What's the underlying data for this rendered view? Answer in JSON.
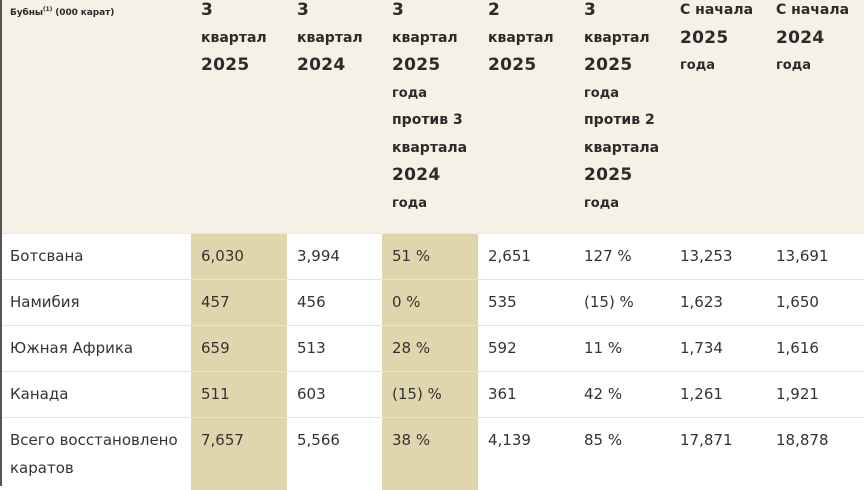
{
  "table": {
    "corner_header": {
      "text": "Бубны",
      "superscript": "(1)",
      "unit": " (000 карат)"
    },
    "columns": [
      {
        "lines": [
          "3",
          "квартал",
          "2025"
        ],
        "highlight": true
      },
      {
        "lines": [
          "3",
          "квартал",
          "2024"
        ],
        "highlight": false
      },
      {
        "lines": [
          "3",
          "квартал",
          "2025",
          "года",
          "против 3",
          "квартала",
          "2024",
          "года"
        ],
        "highlight": true
      },
      {
        "lines": [
          "2",
          "квартал",
          "2025"
        ],
        "highlight": false
      },
      {
        "lines": [
          "3",
          "квартал",
          "2025",
          "года",
          "против 2",
          "квартала",
          "2025",
          "года"
        ],
        "highlight": false
      },
      {
        "lines": [
          "С начала",
          "2025",
          "года"
        ],
        "highlight": false
      },
      {
        "lines": [
          "С начала",
          "2024",
          "года"
        ],
        "highlight": false
      }
    ],
    "rows": [
      {
        "label": "Ботсвана",
        "values": [
          "6,030",
          "3,994",
          "51 %",
          "2,651",
          "127 %",
          "13,253",
          "13,691"
        ]
      },
      {
        "label": "Намибия",
        "values": [
          "457",
          "456",
          "0 %",
          "535",
          "(15) %",
          "1,623",
          "1,650"
        ]
      },
      {
        "label": "Южная Африка",
        "values": [
          "659",
          "513",
          "28 %",
          "592",
          "11 %",
          "1,734",
          "1,616"
        ]
      },
      {
        "label": "Канада",
        "values": [
          "511",
          "603",
          "(15) %",
          "361",
          "42 %",
          "1,261",
          "1,921"
        ]
      },
      {
        "label": "Всего восстановлено каратов",
        "values": [
          "7,657",
          "5,566",
          "38 %",
          "4,139",
          "85 %",
          "17,871",
          "18,878"
        ]
      }
    ]
  },
  "colors": {
    "header_bg": "#f5f1e6",
    "highlight_bg": "#e0d6ae",
    "row_divider": "#e4e4e4",
    "text": "#2b2b2b"
  }
}
